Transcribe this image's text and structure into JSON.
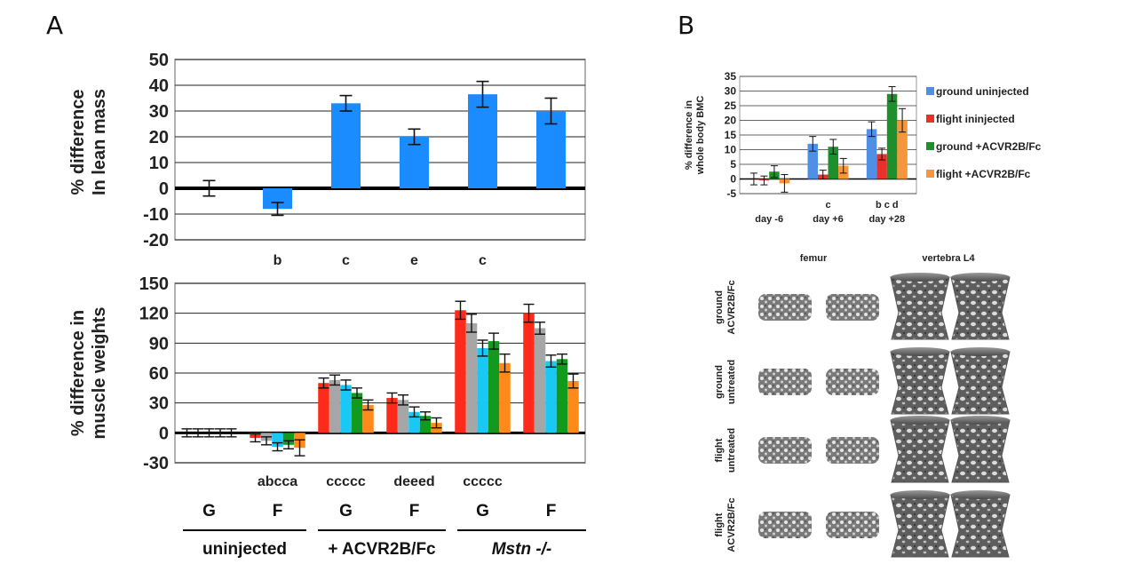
{
  "panels": {
    "a": "A",
    "b": "B"
  },
  "colors": {
    "blue": "#1a8cff",
    "red": "#ff2a1a",
    "gray": "#a6a6a6",
    "cyan": "#19c8f5",
    "green": "#129a1e",
    "orange": "#ff8a1a",
    "lightblue": "#4f8fe6",
    "bred": "#e8312a",
    "bgreen": "#1e8f2a",
    "borange": "#f5963c"
  },
  "chart_data": [
    {
      "id": "lean-mass",
      "type": "bar",
      "ylabel": [
        "% difference",
        "In lean mass"
      ],
      "ylim": [
        -20,
        50
      ],
      "yticks": [
        50,
        40,
        30,
        20,
        10,
        0,
        -10,
        -20
      ],
      "values": [
        0,
        -8,
        33,
        20,
        36.5,
        30
      ],
      "errors": [
        3,
        2.5,
        3,
        3,
        5,
        5
      ],
      "significance": [
        "",
        "b",
        "c",
        "e",
        "c",
        ""
      ]
    },
    {
      "id": "muscle-weights",
      "type": "bar",
      "ylabel": [
        "% difference in",
        "muscle weights"
      ],
      "ylim": [
        -30,
        150
      ],
      "yticks": [
        150,
        120,
        90,
        60,
        30,
        0,
        -30
      ],
      "series_colors": [
        "red",
        "gray",
        "cyan",
        "green",
        "orange"
      ],
      "groups": [
        {
          "values": [
            0,
            0,
            0,
            0,
            0
          ],
          "errors": [
            4,
            4,
            4,
            4,
            4
          ]
        },
        {
          "values": [
            -5,
            -8,
            -14,
            -12,
            -15
          ],
          "errors": [
            4,
            4,
            4,
            4,
            8
          ]
        },
        {
          "values": [
            50,
            53,
            48,
            40,
            28
          ],
          "errors": [
            5,
            5,
            5,
            5,
            5
          ]
        },
        {
          "values": [
            35,
            33,
            21,
            17,
            10
          ],
          "errors": [
            5,
            5,
            5,
            4,
            5
          ]
        },
        {
          "values": [
            123,
            110,
            85,
            92,
            70
          ],
          "errors": [
            9,
            9,
            8,
            8,
            9
          ]
        },
        {
          "values": [
            120,
            105,
            72,
            74,
            52
          ],
          "errors": [
            9,
            6,
            6,
            5,
            7
          ]
        }
      ],
      "significance": [
        "",
        "abcca",
        "ccccc",
        "deeed",
        "ccccc",
        ""
      ],
      "group_labels": [
        "G",
        "F",
        "G",
        "F",
        "G",
        "F"
      ],
      "treatment_labels": [
        "uninjected",
        "+ ACVR2B/Fc",
        "Mstn -/-"
      ]
    },
    {
      "id": "bmc",
      "type": "bar",
      "ylabel": [
        "% difference in",
        "whole body BMC"
      ],
      "ylim": [
        -5,
        35
      ],
      "yticks": [
        35,
        30,
        25,
        20,
        15,
        10,
        5,
        0,
        -5
      ],
      "categories": [
        "day -6",
        "day +6",
        "day +28"
      ],
      "category_letters": [
        "",
        "c",
        "b c d"
      ],
      "series": [
        {
          "name": "ground uninjected",
          "color": "lightblue",
          "values": [
            0,
            12,
            17
          ],
          "errors": [
            2,
            2.5,
            2.5
          ]
        },
        {
          "name": "flight ininjected",
          "color": "bred",
          "values": [
            -0.5,
            1.5,
            8.5
          ],
          "errors": [
            1.5,
            1.5,
            2
          ]
        },
        {
          "name": "ground +ACVR2B/Fc",
          "color": "bgreen",
          "values": [
            2.5,
            11,
            29
          ],
          "errors": [
            2,
            2.5,
            2.5
          ]
        },
        {
          "name": "flight +ACVR2B/Fc",
          "color": "borange",
          "values": [
            -1.5,
            4.5,
            20
          ],
          "errors": [
            3,
            2.5,
            4
          ]
        }
      ]
    }
  ],
  "bone_images": {
    "column_headers": [
      "femur",
      "vertebra L4"
    ],
    "row_labels": [
      [
        "ground",
        "ACVR2B/Fc"
      ],
      [
        "ground",
        "untreated"
      ],
      [
        "flight",
        "untreated"
      ],
      [
        "flight",
        "ACVR2B/Fc"
      ]
    ]
  }
}
